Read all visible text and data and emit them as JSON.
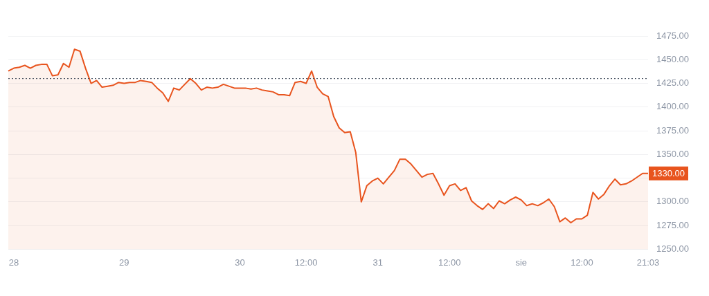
{
  "chart_data": {
    "type": "area",
    "categories": [
      null,
      "28",
      null,
      null,
      null,
      null,
      null,
      null,
      null,
      null,
      null,
      null,
      null,
      null,
      null,
      null,
      null,
      null,
      null,
      null,
      null,
      "29",
      null,
      null,
      null,
      null,
      null,
      null,
      null,
      null,
      null,
      null,
      null,
      null,
      null,
      null,
      null,
      null,
      null,
      null,
      null,
      null,
      "30",
      null,
      null,
      null,
      null,
      null,
      null,
      null,
      null,
      null,
      null,
      null,
      "12:00",
      null,
      null,
      null,
      null,
      null,
      null,
      null,
      null,
      null,
      null,
      null,
      null,
      "31",
      null,
      null,
      null,
      null,
      null,
      null,
      null,
      null,
      null,
      null,
      null,
      null,
      "12:00",
      null,
      null,
      null,
      null,
      null,
      null,
      null,
      null,
      null,
      null,
      null,
      null,
      "sie",
      null,
      null,
      null,
      null,
      null,
      null,
      null,
      null,
      null,
      null,
      "12:00",
      null,
      null,
      null,
      null,
      null,
      null,
      null,
      null,
      null,
      null,
      null,
      "21:03"
    ],
    "series": [
      {
        "color": "#e8541e",
        "values": [
          1438,
          1441,
          1442,
          1444,
          1441,
          1444,
          1445,
          1445,
          1433,
          1434,
          1446,
          1442,
          1461,
          1459,
          1441,
          1425,
          1428,
          1421,
          1422,
          1423,
          1426,
          1425,
          1426,
          1426,
          1428,
          1427,
          1426,
          1420,
          1415,
          1406,
          1420,
          1418,
          1424,
          1430,
          1425,
          1418,
          1421,
          1420,
          1421,
          1424,
          1422,
          1420,
          1420,
          1420,
          1419,
          1420,
          1418,
          1417,
          1416,
          1413,
          1413,
          1412,
          1426,
          1427,
          1425,
          1438,
          1421,
          1414,
          1411,
          1390,
          1378,
          1373,
          1374,
          1352,
          1300,
          1317,
          1322,
          1325,
          1319,
          1326,
          1333,
          1345,
          1345,
          1340,
          1333,
          1326,
          1329,
          1330,
          1319,
          1307,
          1317,
          1319,
          1312,
          1315,
          1301,
          1296,
          1292,
          1298,
          1293,
          1301,
          1298,
          1302,
          1305,
          1302,
          1296,
          1298,
          1296,
          1299,
          1303,
          1295,
          1279,
          1283,
          1278,
          1282,
          1282,
          1286,
          1310,
          1303,
          1308,
          1317,
          1324,
          1318,
          1319,
          1322,
          1326,
          1330,
          1330
        ]
      }
    ],
    "ylim": [
      1250,
      1475
    ],
    "yticks": [
      {
        "value": 1250,
        "label": "1250.00"
      },
      {
        "value": 1275,
        "label": "1275.00"
      },
      {
        "value": 1300,
        "label": "1300.00"
      },
      {
        "value": 1325,
        "label": null
      },
      {
        "value": 1350,
        "label": "1350.00"
      },
      {
        "value": 1375,
        "label": "1375.00"
      },
      {
        "value": 1400,
        "label": "1400.00"
      },
      {
        "value": 1425,
        "label": "1425.00"
      },
      {
        "value": 1450,
        "label": "1450.00"
      },
      {
        "value": 1475,
        "label": "1475.00"
      }
    ],
    "ref_lines": [
      {
        "axis": "y",
        "value": 1430,
        "color": "#2f3b4c",
        "line_style": "dotted"
      }
    ],
    "annotations": [
      "1330.00"
    ],
    "grid": "y",
    "legend": false,
    "marker": "none",
    "line_style": "solid"
  }
}
